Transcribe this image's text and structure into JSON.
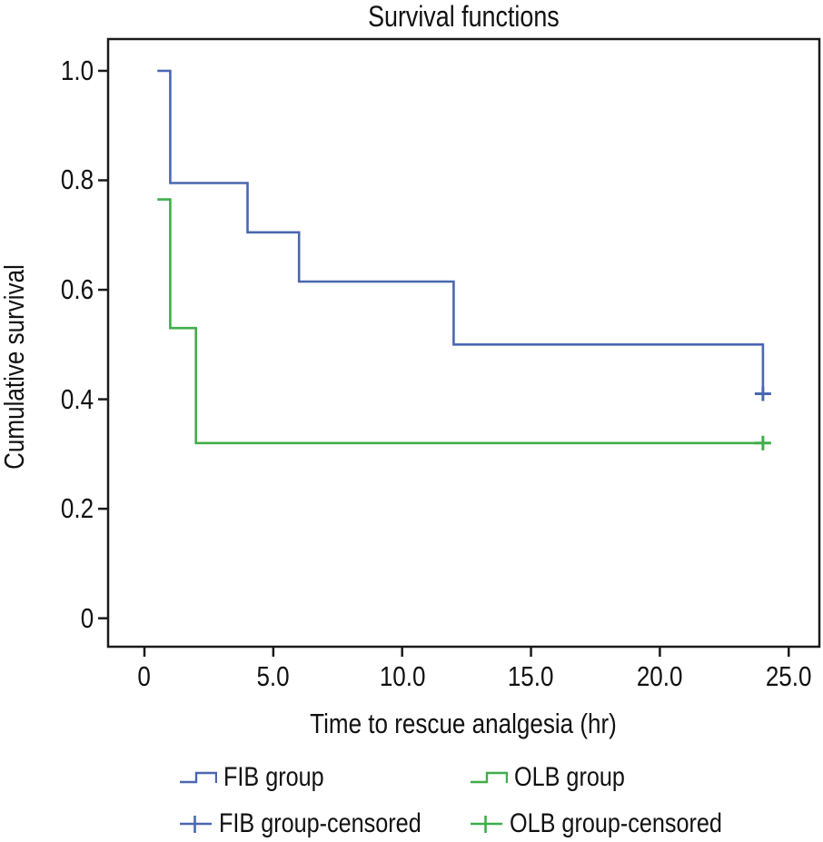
{
  "chart_data": {
    "type": "step-line",
    "title": "Survival functions",
    "xlabel": "Time to rescue analgesia (hr)",
    "ylabel": "Cumulative survival",
    "grid": false,
    "axes": {
      "x": {
        "min": -1.41,
        "max": 26.19,
        "ticks": [
          {
            "v": 0,
            "label": "0"
          },
          {
            "v": 5,
            "label": "5.0"
          },
          {
            "v": 10,
            "label": "10.0"
          },
          {
            "v": 15,
            "label": "15.0"
          },
          {
            "v": 20,
            "label": "20.0"
          },
          {
            "v": 25,
            "label": "25.0"
          }
        ]
      },
      "y": {
        "min": -0.052,
        "max": 1.058,
        "ticks": [
          {
            "v": 0,
            "label": "0"
          },
          {
            "v": 0.2,
            "label": "0.2"
          },
          {
            "v": 0.4,
            "label": "0.4"
          },
          {
            "v": 0.6,
            "label": "0.6"
          },
          {
            "v": 0.8,
            "label": "0.8"
          },
          {
            "v": 1.0,
            "label": "1.0"
          }
        ]
      }
    },
    "series": [
      {
        "name": "FIB group",
        "color": "#4a67b0",
        "points": [
          [
            0.5,
            1.0
          ],
          [
            1,
            1.0
          ],
          [
            1,
            0.795
          ],
          [
            4,
            0.795
          ],
          [
            4,
            0.705
          ],
          [
            6,
            0.705
          ],
          [
            6,
            0.615
          ],
          [
            12,
            0.615
          ],
          [
            12,
            0.5
          ],
          [
            24,
            0.5
          ],
          [
            24,
            0.41
          ]
        ],
        "censored": [
          [
            24,
            0.41
          ]
        ]
      },
      {
        "name": "OLB group",
        "color": "#3fae4a",
        "points": [
          [
            0.5,
            0.765
          ],
          [
            1,
            0.765
          ],
          [
            1,
            0.53
          ],
          [
            2,
            0.53
          ],
          [
            2,
            0.32
          ],
          [
            24,
            0.32
          ]
        ],
        "censored": [
          [
            24,
            0.32
          ]
        ]
      }
    ],
    "legend": {
      "position": "bottom",
      "items": [
        {
          "label": "FIB group",
          "marker": "step",
          "series": 0
        },
        {
          "label": "OLB group",
          "marker": "step",
          "series": 1
        },
        {
          "label": "FIB group-censored",
          "marker": "censor",
          "series": 0
        },
        {
          "label": "OLB group-censored",
          "marker": "censor",
          "series": 1
        }
      ]
    },
    "frame_color": "#1a1a1a"
  }
}
